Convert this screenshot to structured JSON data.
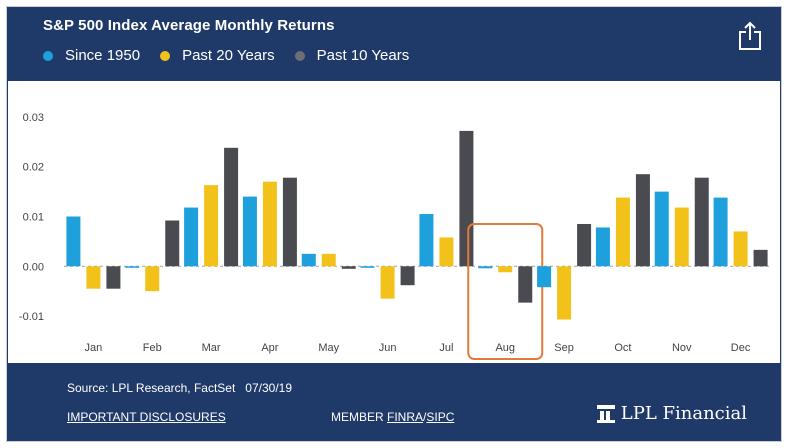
{
  "header": {
    "title": "S&P 500 Index Average Monthly Returns",
    "share_icon": "share-icon"
  },
  "chart_data": {
    "type": "bar",
    "categories": [
      "Jan",
      "Feb",
      "Mar",
      "Apr",
      "May",
      "Jun",
      "Jul",
      "Aug",
      "Sep",
      "Oct",
      "Nov",
      "Dec"
    ],
    "series": [
      {
        "name": "Since 1950",
        "color": "#1ea0dd",
        "values": [
          0.01,
          -0.0002,
          0.0118,
          0.014,
          0.0025,
          -0.0002,
          0.0105,
          -0.0004,
          -0.0042,
          0.0078,
          0.015,
          0.0138
        ]
      },
      {
        "name": "Past 20 Years",
        "color": "#f2c21b",
        "values": [
          -0.0045,
          -0.005,
          0.0163,
          0.017,
          0.0025,
          -0.0065,
          0.0058,
          -0.0012,
          -0.0107,
          0.0138,
          0.0118,
          0.007
        ]
      },
      {
        "name": "Past 10 Years",
        "color": "#4a4b50",
        "values": [
          -0.0045,
          0.0092,
          0.0238,
          0.0178,
          -0.0005,
          -0.0038,
          0.0272,
          -0.0073,
          0.0085,
          0.0185,
          0.0178,
          0.0033
        ]
      }
    ],
    "ylim": [
      -0.013,
      0.032
    ],
    "yticks": [
      "0.03",
      "0.02",
      "0.01",
      "0.00",
      "-0.01"
    ],
    "ytick_values": [
      0.03,
      0.02,
      0.01,
      0.0,
      -0.01
    ],
    "highlight_category": "Aug",
    "highlight_color": "#e07b39",
    "grid": false,
    "legend": "top-left"
  },
  "footer": {
    "source": "Source: LPL Research, FactSet   07/30/19",
    "disclosures": "IMPORTANT DISCLOSURES",
    "member_prefix": "MEMBER ",
    "finra": "FINRA",
    "slash": "/",
    "sipc": "SIPC",
    "brand": "LPL Financial",
    "brand_icon": "lpl-logo-icon"
  }
}
